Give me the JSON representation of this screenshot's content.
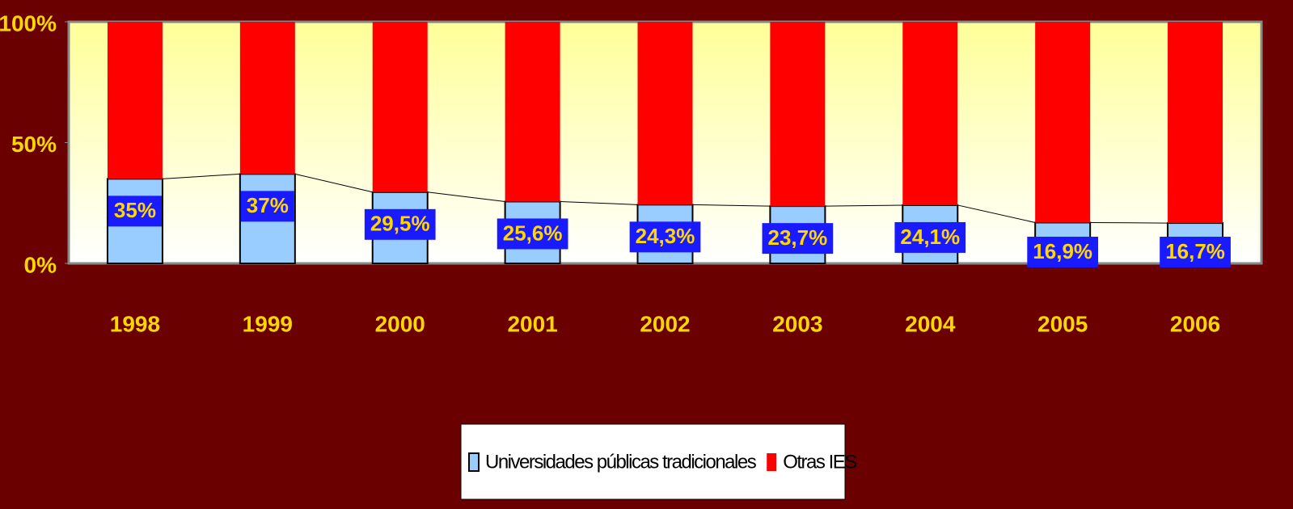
{
  "chart_data": {
    "type": "stacked_bar",
    "categories": [
      "1998",
      "1999",
      "2000",
      "2001",
      "2002",
      "2003",
      "2004",
      "2005",
      "2006"
    ],
    "series": [
      {
        "name": "Universidades públicas tradicionales",
        "color": "#99ccff",
        "values": [
          35,
          37,
          29.5,
          25.6,
          24.3,
          23.7,
          24.1,
          16.9,
          16.7
        ],
        "value_labels": [
          "35%",
          "37%",
          "29,5%",
          "25,6%",
          "24,3%",
          "23,7%",
          "24,1%",
          "16,9%",
          "16,7%"
        ]
      },
      {
        "name": "Otras IES",
        "color": "#ff0000",
        "values": [
          65,
          63,
          70.5,
          74.4,
          75.7,
          76.3,
          75.9,
          83.1,
          83.3
        ]
      }
    ],
    "ylim": [
      0,
      100
    ],
    "yticks": [
      {
        "value": 0,
        "label": "0%"
      },
      {
        "value": 50,
        "label": "50%"
      },
      {
        "value": 100,
        "label": "100%"
      }
    ],
    "legend": "bottom"
  }
}
